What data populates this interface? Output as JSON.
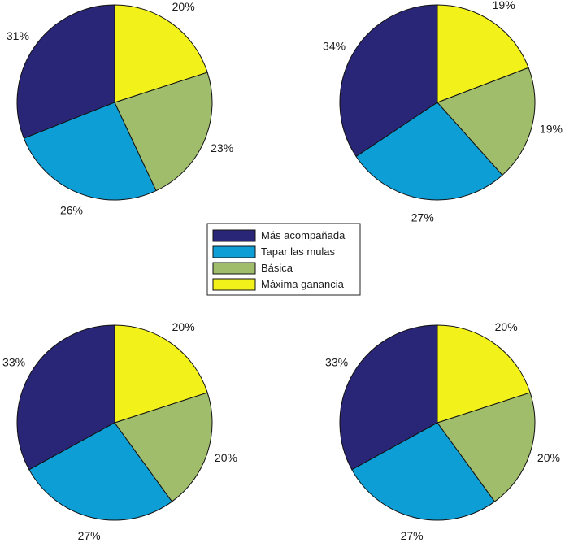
{
  "chart_data": [
    {
      "type": "pie",
      "categories": [
        "Más acompañada",
        "Tapar las mulas",
        "Básica",
        "Máxima ganancia"
      ],
      "values": [
        31,
        26,
        23,
        20
      ],
      "labels": [
        "31%",
        "26%",
        "23%",
        "20%"
      ]
    },
    {
      "type": "pie",
      "categories": [
        "Más acompañada",
        "Tapar las mulas",
        "Básica",
        "Máxima ganancia"
      ],
      "values": [
        34,
        27,
        19,
        19
      ],
      "labels": [
        "34%",
        "27%",
        "19%",
        "19%"
      ]
    },
    {
      "type": "pie",
      "categories": [
        "Más acompañada",
        "Tapar las mulas",
        "Básica",
        "Máxima ganancia"
      ],
      "values": [
        33,
        27,
        20,
        20
      ],
      "labels": [
        "33%",
        "27%",
        "20%",
        "20%"
      ]
    },
    {
      "type": "pie",
      "categories": [
        "Más acompañada",
        "Tapar las mulas",
        "Básica",
        "Máxima ganancia"
      ],
      "values": [
        33,
        27,
        20,
        20
      ],
      "labels": [
        "33%",
        "27%",
        "20%",
        "20%"
      ]
    }
  ],
  "legend": {
    "entries": [
      "Más acompañada",
      "Tapar las mulas",
      "Básica",
      "Máxima ganancia"
    ],
    "colors": [
      "#2a2677",
      "#0e9ed6",
      "#9fbd6a",
      "#f2f21a"
    ],
    "placement": "center"
  }
}
